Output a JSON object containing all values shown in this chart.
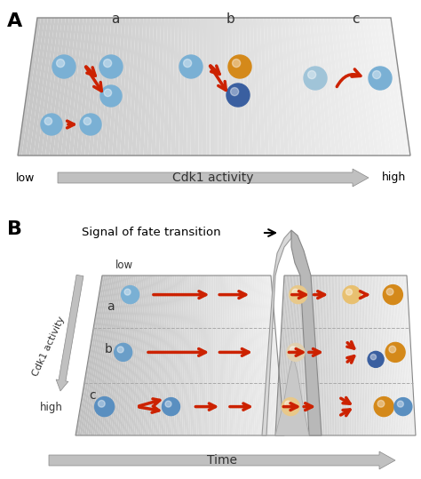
{
  "bg_color": "#ffffff",
  "panel_A_label": "A",
  "panel_B_label": "B",
  "panel_a_label": "a",
  "panel_b_label": "b",
  "panel_c_label": "c",
  "cdk1_label": "Cdk1 activity",
  "low_label": "low",
  "high_label": "high",
  "time_label": "Time",
  "signal_label": "Signal of fate transition",
  "cdk1_activity_B": "Cdk1 activity",
  "blue_light": "#7ab0d4",
  "blue_medium": "#5a8fc0",
  "blue_dark": "#3a5fa0",
  "orange": "#d4891a",
  "orange_light": "#e8b870",
  "white_light": "#f0eeec",
  "red_arrow": "#cc2200",
  "gray_plate": "#c8c8c8",
  "gray_light": "#e8e8e8",
  "gray_gradient_light": "#f0f0f0",
  "gray_gradient_dark": "#b0b0b0"
}
